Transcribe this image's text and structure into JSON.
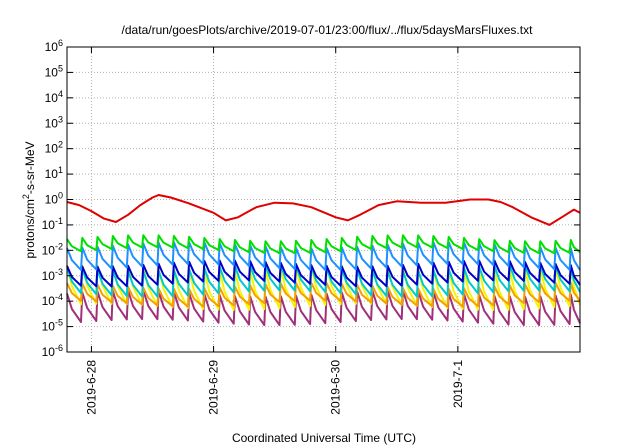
{
  "chart_data": {
    "type": "line",
    "title": "/data/run/goesPlots/archive/2019-07-01/23:00/flux/../flux/5daysMarsFluxes.txt",
    "xlabel": "Coordinated Universal Time (UTC)",
    "ylabel": {
      "prefix": "protons/cm",
      "sup": "2",
      "suffix": "-s-sr-MeV"
    },
    "yscale": "log",
    "ylim_exponent": [
      -6,
      6
    ],
    "y_ticks": [
      {
        "exp": "-6"
      },
      {
        "exp": "-5"
      },
      {
        "exp": "-4"
      },
      {
        "exp": "-3"
      },
      {
        "exp": "-2"
      },
      {
        "exp": "-1"
      },
      {
        "exp": "0"
      },
      {
        "exp": "1"
      },
      {
        "exp": "2"
      },
      {
        "exp": "3"
      },
      {
        "exp": "4"
      },
      {
        "exp": "5"
      },
      {
        "exp": "6"
      }
    ],
    "y_tick_base": "10",
    "xlim_days": [
      -0.2,
      4.0
    ],
    "x_ticks": [
      {
        "label": "2019-6-28",
        "day": 0
      },
      {
        "label": "2019-6-29",
        "day": 1
      },
      {
        "label": "2019-6-30",
        "day": 2
      },
      {
        "label": "2019-7-1",
        "day": 3
      }
    ],
    "grid": true,
    "legend": "none",
    "sawtooth_period_days": 0.125,
    "series": [
      {
        "color": "#a0307a",
        "peak": 0.0002,
        "trough": 1.5e-05
      },
      {
        "color": "#f5f500",
        "peak": 0.002,
        "trough": 6e-05
      },
      {
        "color": "#f5a000",
        "peak": 0.0004,
        "trough": 8e-05
      },
      {
        "color": "#00c8d0",
        "peak": 0.002,
        "trough": 0.0002
      },
      {
        "color": "#0000c8",
        "peak": 0.003,
        "trough": 0.0005
      },
      {
        "color": "#1e90ff",
        "peak": 0.016,
        "trough": 0.0022
      },
      {
        "color": "#00e000",
        "peak": 0.03,
        "trough": 0.01
      },
      {
        "color": "#e00000",
        "points": [
          [
            -0.2,
            0.8
          ],
          [
            -0.1,
            0.6
          ],
          [
            0.0,
            0.35
          ],
          [
            0.1,
            0.18
          ],
          [
            0.2,
            0.13
          ],
          [
            0.3,
            0.25
          ],
          [
            0.4,
            0.6
          ],
          [
            0.5,
            1.2
          ],
          [
            0.55,
            1.5
          ],
          [
            0.65,
            1.2
          ],
          [
            0.8,
            0.7
          ],
          [
            1.0,
            0.3
          ],
          [
            1.1,
            0.15
          ],
          [
            1.2,
            0.2
          ],
          [
            1.35,
            0.5
          ],
          [
            1.5,
            0.75
          ],
          [
            1.65,
            0.7
          ],
          [
            1.8,
            0.5
          ],
          [
            2.0,
            0.2
          ],
          [
            2.1,
            0.15
          ],
          [
            2.2,
            0.25
          ],
          [
            2.35,
            0.6
          ],
          [
            2.5,
            0.85
          ],
          [
            2.7,
            0.75
          ],
          [
            2.9,
            0.75
          ],
          [
            3.1,
            1.0
          ],
          [
            3.25,
            1.0
          ],
          [
            3.35,
            0.8
          ],
          [
            3.45,
            0.5
          ],
          [
            3.6,
            0.2
          ],
          [
            3.75,
            0.1
          ],
          [
            3.85,
            0.2
          ],
          [
            3.95,
            0.4
          ],
          [
            4.0,
            0.3
          ]
        ]
      }
    ]
  }
}
